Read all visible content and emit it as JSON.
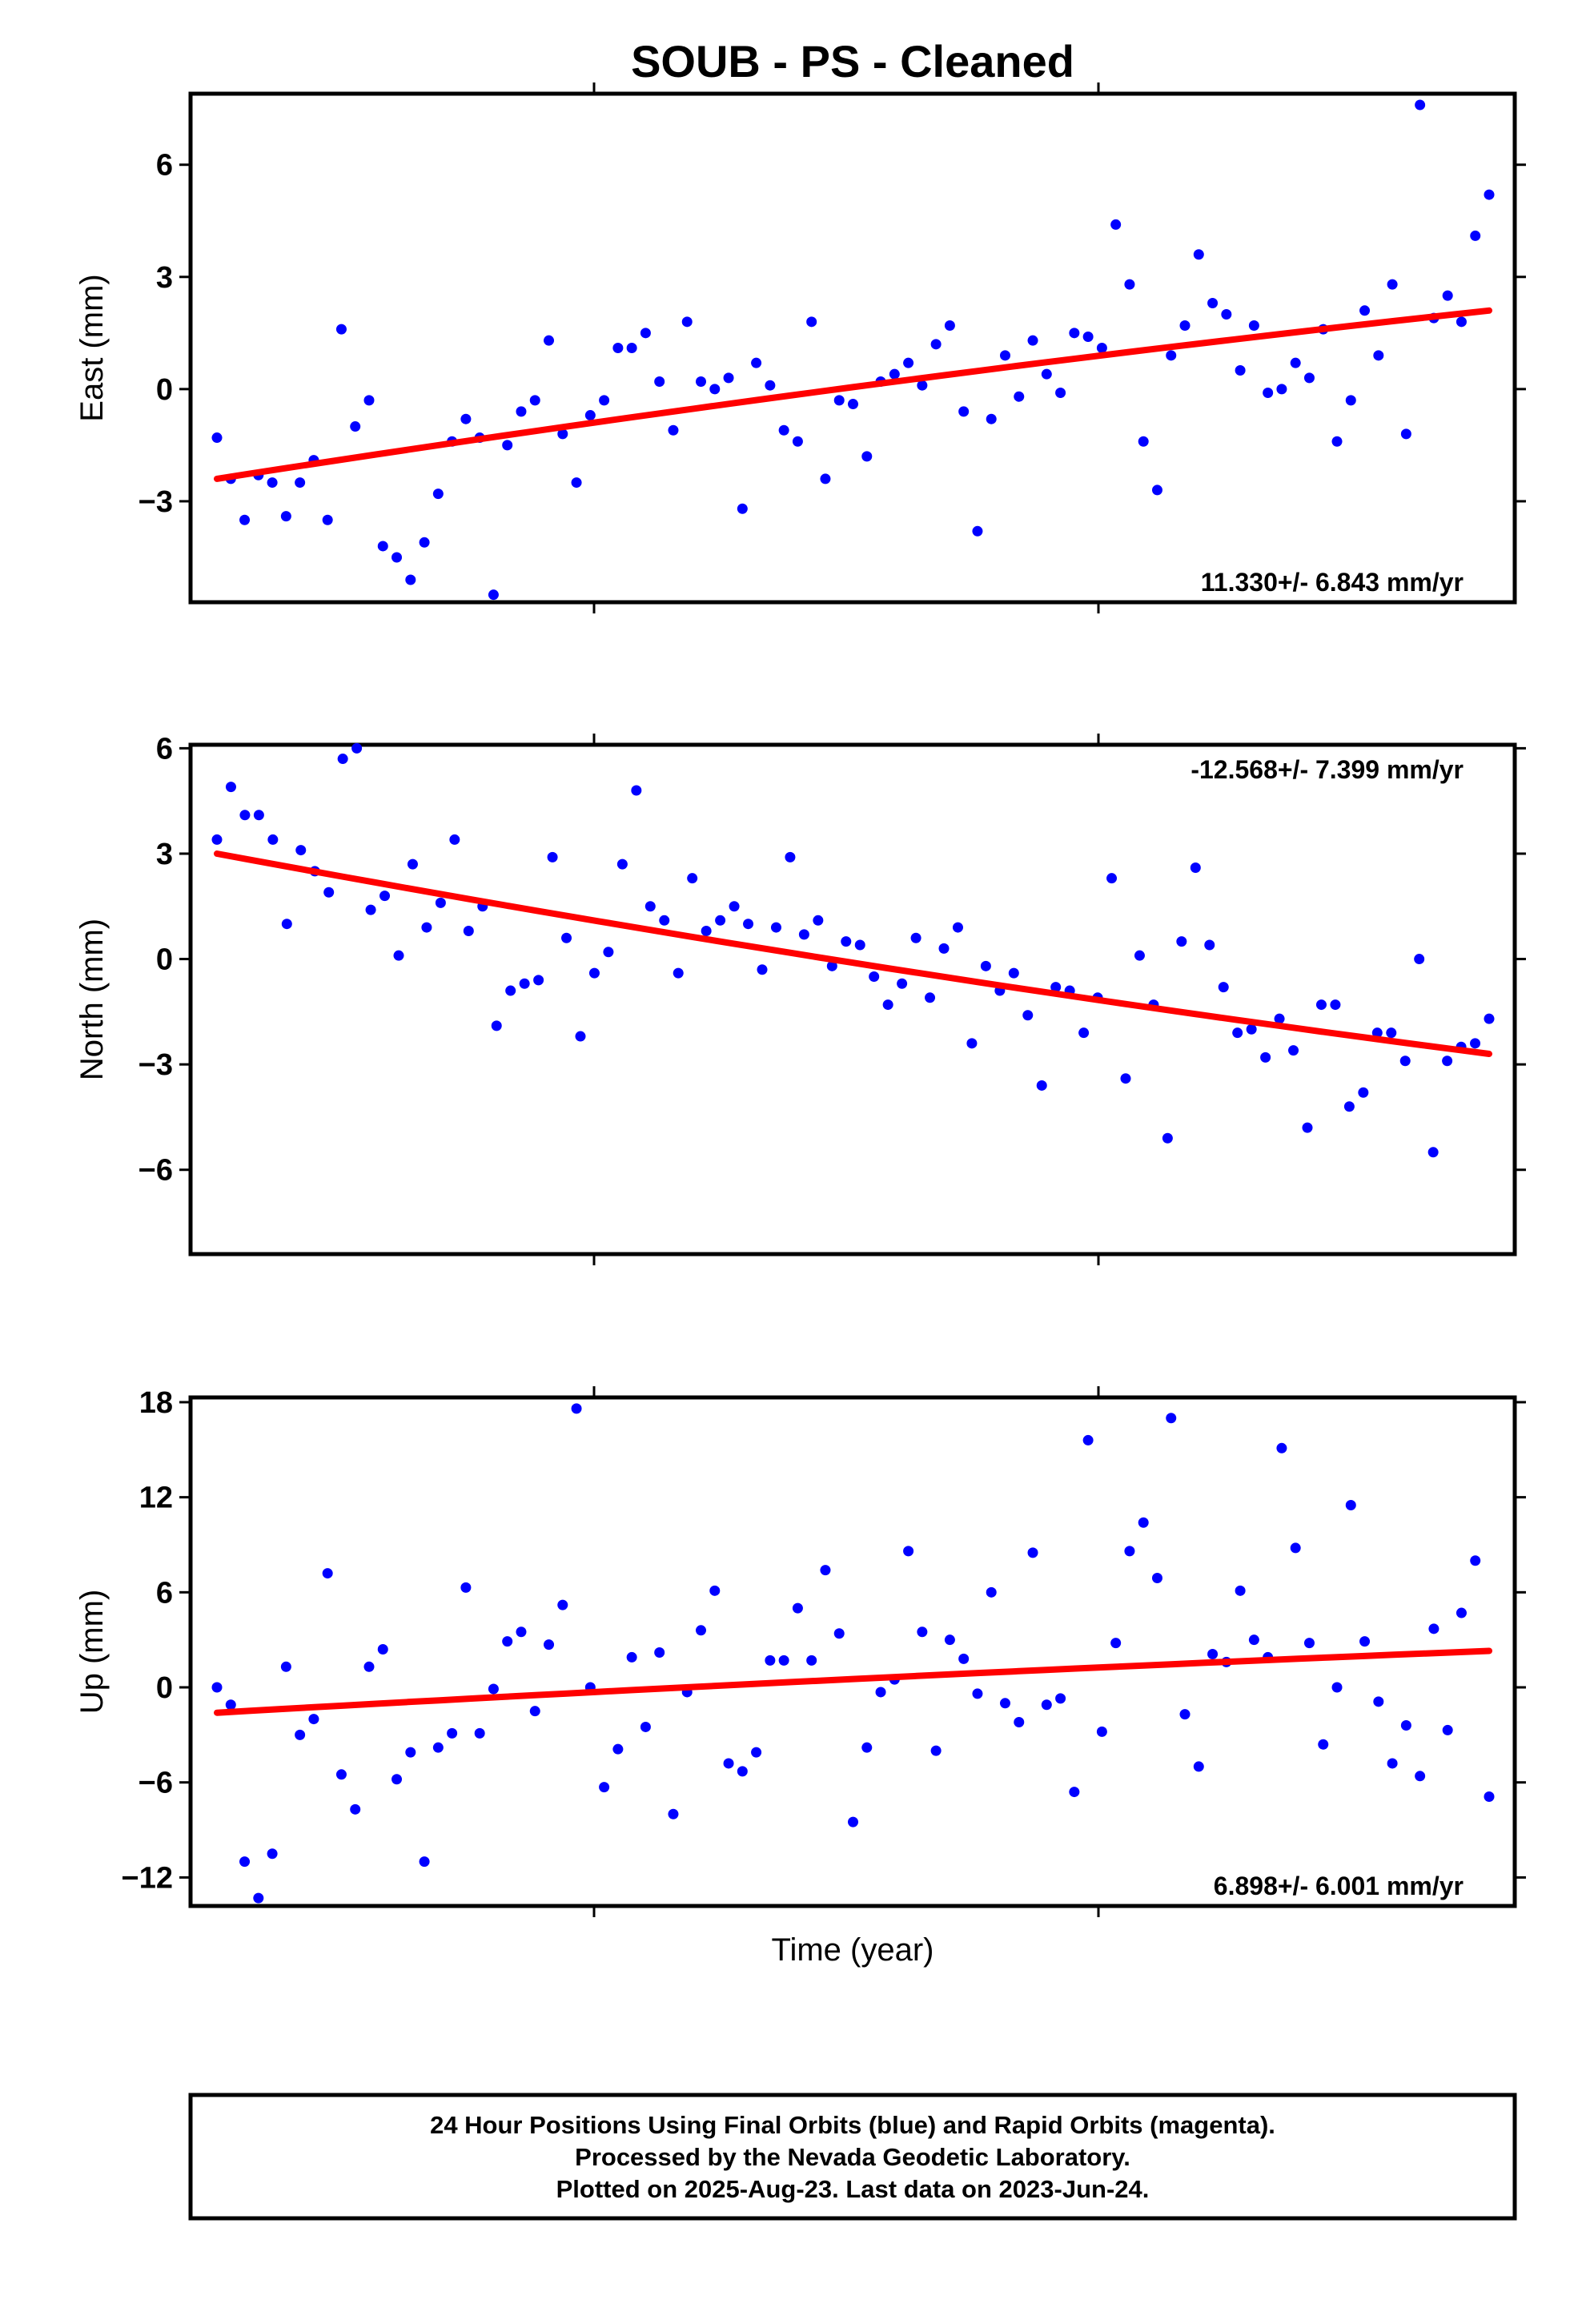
{
  "title": "SOUB  - PS - Cleaned",
  "xlabel": "Time (year)",
  "footer": [
    "24 Hour Positions Using Final Orbits (blue) and Rapid Orbits (magenta).",
    "Processed by the Nevada Geodetic Laboratory.",
    "Plotted on 2025-Aug-23. Last data on 2023-Jun-24."
  ],
  "colors": {
    "points": "#0000ff",
    "fit": "#ff0000",
    "frame": "#000000"
  },
  "chart_data": [
    {
      "type": "scatter",
      "ylabel": "East (mm)",
      "ylim": [
        -5.7,
        7.9
      ],
      "yticks": [
        -3,
        0,
        3,
        6
      ],
      "rate_label": "11.330+/- 6.843 mm/yr",
      "rate_position": "bottom-right",
      "fit": [
        -2.4,
        2.1
      ],
      "series": [
        {
          "values": [
            -1.3,
            -2.4,
            -3.5,
            -2.3,
            -2.5,
            -3.4,
            -2.5,
            -1.9,
            -3.5,
            1.6,
            -1.0,
            -0.3,
            -4.2,
            -4.5,
            -5.1,
            -4.1,
            -2.8,
            -1.4,
            -0.8,
            -1.3,
            -5.5,
            -1.5,
            -0.6,
            -0.3,
            1.3,
            -1.2,
            -2.5,
            -0.7,
            -0.3,
            1.1,
            1.1,
            1.5,
            0.2,
            -1.1,
            1.8,
            0.2,
            0.0,
            0.3,
            -3.2,
            0.7,
            0.1,
            -1.1,
            -1.4,
            1.8,
            -2.4,
            -0.3,
            -0.4,
            -1.8,
            0.2,
            0.4,
            0.7,
            0.1,
            1.2,
            1.7,
            -0.6,
            -3.8,
            -0.8,
            0.9,
            -0.2,
            1.3,
            0.4,
            -0.1,
            1.5,
            1.4,
            1.1,
            4.4,
            2.8,
            -1.4,
            -2.7,
            0.9,
            1.7,
            3.6,
            2.3,
            2.0,
            0.5,
            1.7,
            -0.1,
            0.0,
            0.7,
            0.3,
            1.6,
            -1.4,
            -0.3,
            2.1,
            0.9,
            2.8,
            -1.2,
            7.6,
            1.9,
            2.5,
            1.8,
            4.1,
            5.2
          ]
        }
      ]
    },
    {
      "type": "scatter",
      "ylabel": "North (mm)",
      "ylim": [
        -8.4,
        6.1
      ],
      "yticks": [
        -6,
        -3,
        0,
        3,
        6
      ],
      "rate_label": "-12.568+/- 7.399 mm/yr",
      "rate_position": "top-right",
      "fit": [
        3.0,
        -2.7
      ],
      "series": [
        {
          "values": [
            3.4,
            4.9,
            4.1,
            4.1,
            3.4,
            1.0,
            3.1,
            2.5,
            1.9,
            5.7,
            6.0,
            1.4,
            1.8,
            0.1,
            2.7,
            0.9,
            1.6,
            3.4,
            0.8,
            1.5,
            -1.9,
            -0.9,
            -0.7,
            -0.6,
            2.9,
            0.6,
            -2.2,
            -0.4,
            0.2,
            2.7,
            4.8,
            1.5,
            1.1,
            -0.4,
            2.3,
            0.8,
            1.1,
            1.5,
            1.0,
            -0.3,
            0.9,
            2.9,
            0.7,
            1.1,
            -0.2,
            0.5,
            0.4,
            -0.5,
            -1.3,
            -0.7,
            0.6,
            -1.1,
            0.3,
            0.9,
            -2.4,
            -0.2,
            -0.9,
            -0.4,
            -1.6,
            -3.6,
            -0.8,
            -0.9,
            -2.1,
            -1.1,
            2.3,
            -3.4,
            0.1,
            -1.3,
            -5.1,
            0.5,
            2.6,
            0.4,
            -0.8,
            -2.1,
            -2.0,
            -2.8,
            -1.7,
            -2.6,
            -4.8,
            -1.3,
            -1.3,
            -4.2,
            -3.8,
            -2.1,
            -2.1,
            -2.9,
            0.0,
            -5.5,
            -2.9,
            -2.5,
            -2.4,
            -1.7
          ]
        }
      ]
    },
    {
      "type": "scatter",
      "ylabel": "Up (mm)",
      "ylim": [
        -13.8,
        18.3
      ],
      "yticks": [
        -12,
        -6,
        0,
        6,
        12,
        18
      ],
      "rate_label": "6.898+/- 6.001 mm/yr",
      "rate_position": "bottom-right",
      "fit": [
        -1.6,
        2.3
      ],
      "series": [
        {
          "values": [
            0.0,
            -1.1,
            -11.0,
            -13.3,
            -10.5,
            1.3,
            -3.0,
            -2.0,
            7.2,
            -5.5,
            -7.7,
            1.3,
            2.4,
            -5.8,
            -4.1,
            -11.0,
            -3.8,
            -2.9,
            6.3,
            -2.9,
            -0.1,
            2.9,
            3.5,
            -1.5,
            2.7,
            5.2,
            17.6,
            0.0,
            -6.3,
            -3.9,
            1.9,
            -2.5,
            2.2,
            -8.0,
            -0.3,
            3.6,
            6.1,
            -4.8,
            -5.3,
            -4.1,
            1.7,
            1.7,
            5.0,
            1.7,
            7.4,
            3.4,
            -8.5,
            -3.8,
            -0.3,
            0.5,
            8.6,
            3.5,
            -4.0,
            3.0,
            1.8,
            -0.4,
            6.0,
            -1.0,
            -2.2,
            8.5,
            -1.1,
            -0.7,
            -6.6,
            15.6,
            -2.8,
            2.8,
            8.6,
            10.4,
            6.9,
            17.0,
            -1.7,
            -5.0,
            2.1,
            1.6,
            6.1,
            3.0,
            1.9,
            15.1,
            8.8,
            2.8,
            -3.6,
            0.0,
            11.5,
            2.9,
            -0.9,
            -4.8,
            -2.4,
            -5.6,
            3.7,
            -2.7,
            4.7,
            8.0,
            -6.9
          ]
        }
      ]
    }
  ]
}
